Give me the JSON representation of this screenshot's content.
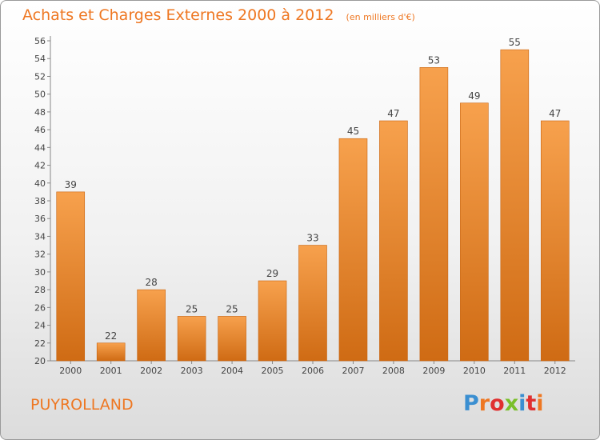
{
  "header": {
    "title": "Achats et Charges Externes 2000 à 2012",
    "subtitle": "(en milliers d'€)"
  },
  "footer": {
    "commune": "PUYROLLAND",
    "logo": "Proxiti"
  },
  "colors": {
    "accent": "#ee7722",
    "bar_top": "#f7a14d",
    "bar_bottom": "#cf6b14"
  },
  "chart_data": {
    "type": "bar",
    "title": "Achats et Charges Externes 2000 à 2012",
    "subtitle": "(en milliers d'€)",
    "xlabel": "",
    "ylabel": "",
    "categories": [
      "2000",
      "2001",
      "2002",
      "2003",
      "2004",
      "2005",
      "2006",
      "2007",
      "2008",
      "2009",
      "2010",
      "2011",
      "2012"
    ],
    "values": [
      39,
      22,
      28,
      25,
      25,
      29,
      33,
      45,
      47,
      53,
      49,
      55,
      47
    ],
    "ylim": [
      20,
      56
    ],
    "yticks": [
      20,
      22,
      24,
      26,
      28,
      30,
      32,
      34,
      36,
      38,
      40,
      42,
      44,
      46,
      48,
      50,
      52,
      54,
      56
    ],
    "grid": false,
    "data_labels": true
  }
}
